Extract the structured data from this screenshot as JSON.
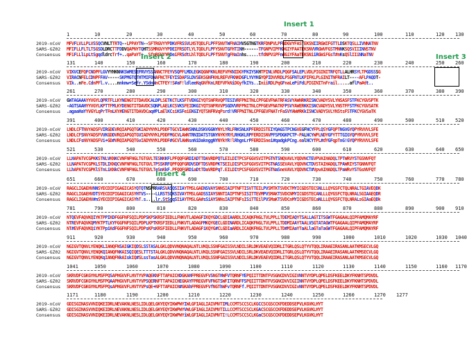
{
  "labels": {
    "seq1": "2019-nCoV",
    "seq2": "SARS-GZ02",
    "consensus": "Consensus"
  },
  "colors": {
    "identical": "#e1140a",
    "similar": "#1f2ed8",
    "other": "#111111",
    "insert": "#1f9a4c"
  },
  "inserts": [
    {
      "name": "Insert 1"
    },
    {
      "name": "Insert 2"
    },
    {
      "name": "Insert 3"
    },
    {
      "name": "Insert 4"
    }
  ],
  "blocks": [
    {
      "ticks": [
        "1",
        "10",
        "20",
        "30",
        "40",
        "50",
        "60",
        "70",
        "80",
        "90",
        "100",
        "110",
        "120",
        "130"
      ],
      "seq1": "MFVFLVLLPLVSSQCVNLTTRTQ--LPPAYTN--SFTRGVYYPDKVFRSSVLHSTQDLFLPFFSNVTWFHAIHVSGTNGTKRFDNPVLPFNDGVYFASTEKSNIIRGWIFGTTLDSKTQSLLIVNNATNV",
      "seq2": "MFIFLLFLTLTSGSDLDRCTTFDDVQAPNYTQHTSSMRGVYYPDEIFRSDTLYLTQDLFLPFYSNVTGFHTINH------TFGNPVIPFKDGIYFAATEKSNVVRGWVFGSTMNNKSQSVIIINNSTNV",
      "cons": "MFiFLLlLpLtSgqdldrcTrf+..qaPaYT+..SfnRGVYYPDeiFRSdtLhlTQDLFLPFfSNVTgFHaInhs.....tfdNPViPFndGiYFAaTEKSNiiRGWiFGsT#nKsQSlIIiNNaTNV",
      "pattern": "rrrbrrbrrbrbrbbkkkkrrbbkkrrrrrrbkkrrrrrrrrrbbrrrbrbrrrrrrrrrbrrrrrrbrrbrbkkkkkkbrbrrrrrrrbrrrrrrrrrrrrrbbrrrrrrbrrbkrrbrrrbbrrbrrrr"
    },
    {
      "ticks": [
        "131",
        "140",
        "150",
        "160",
        "170",
        "180",
        "190",
        "200",
        "210",
        "220",
        "230",
        "240",
        "250",
        "260"
      ],
      "seq1": "VIKVCEFQFCNDPFLGVYYHKNNKSWMESEFRVYSSANNCTFEYVSQPFLMDLEGKQGNFKNLREFVFKNIDGYFKIYSKHTPINLVRDLPQGFSALEPLVDLPIGINITRFQTLLALHRSYLTPGDSSSG",
      "seq2": "VIRACNFELCDNPFFAV-----SKPMGTQTHTMIFDNAFNCTFEYISDAFSLDVSEKSGNFKHLREFVFKNKDGFLYVYKGYQPIDVVRDLPSGFNTLKPIFKLPLGINITNFRAILT----AFLPAQDT-",
      "cons": "VIk..nFe.CdnPFl.v....nnkmw+Sefr.YSdnNnCTFEY!S#aF!ldleeKqGNfKnLREFVFkNiDGyfkIYs..IniiRDLPqGFnaLePiFdLPIGINITnFrail.....aflPa#dt..",
      "pattern": "rrbbbkrrbrbrrrbbbkkkkkbbbbbbbbbbbbbbbrrrrrrbrbbrrbbbbbrbrrrrbrrrrrrrrbrrrbbbbbbbkrrrbrrrrrbrrrbbrbbrrrrrrrrrrrbrrrbrkkkkbbrrrbbbbk"
    },
    {
      "ticks": [
        "261",
        "270",
        "280",
        "290",
        "300",
        "310",
        "320",
        "330",
        "340",
        "350",
        "360",
        "370",
        "380",
        "390"
      ],
      "seq1": "GWTAGAAAYYVGYLQPRTFLLKYNENGTITDAVDCALDPLSETKCTLKSFTVEKGIYQTSNFRVQPTESIVRFPNITNLCPFGEVFNATRFASVYAWNRKRISNCVADYSVLYNSASFSTFKCYGVSPTK",
      "seq2": "-AGTSAAHYYVGYLKPTTFMLKYDENGTITDAVDCSQNPLAELKCSVKSFEIDKGIYQTSNFRVVPSGDVVRFPNITNLCPFGEVFNATKFPSVYAWERKKISNCVADYSVLYNSTFFSTFKCYGVSATK",
      "cons": ".agaaHaYYVGYLqPrTFmLKY#ENGTITDAVDCaq#PLaElKCsiKSFeiEKGIYQTSNFRVqPsrd!VRFPNITNLCPFGEVFNATrFaSVYAW#RKkISNCVADYSVLYNStsFSTFKCYGVSaTK",
      "pattern": "kbbbbbbbrrrrrrbrbrrbrrrbrrrrrrrrrrrbbbbrrrbbrrbbbrrrbbbrrrrrrrrrrrbbbbbrrrrrrrrrrrrrrrrrrrrbrbrrrrrbrrbbrrrrrrrrrrrrrrbbbrrrrrrrrrbrr"
    },
    {
      "ticks": [
        "391",
        "400",
        "410",
        "420",
        "430",
        "440",
        "450",
        "460",
        "470",
        "480",
        "490",
        "500",
        "510",
        "520"
      ],
      "seq1": "LNDLCFTNVYADSFVIRGDEVRQIAPGQTGKIADYNYKLPDDFTGCVIAWNSNNLDSKVGGNYNYLYRLFRKSNLKPFERDISTEIYQAGSTPCNGVEGFNCYFPLQSYGFQPTNGVGYQPYRVVVLSFE",
      "seq2": "LNDLCFSNVYADSFVVKGDDVRQIAPGQTGVIADYNYKLPDDFMGCVLAWNTRNIDATSTGNYNYKYRYLRHGKLRPFERDISNVPFSPDGKPCTP-PALNCYWPLNDYGFYTTTGIGYQPYRVVVLSFE",
      "cons": "LNDLCFsNVYADSFVi+GD#VRQIAPGQTGvIADYNYKLPDDF#GCVlAWNsnNiDaknggNYNYkYR!lRhgnLrPFERDISnei#qadgkPCng.ealNCYfPL#dYGFqpTnG!GYQPYRVVVLSFE",
      "pattern": "rrrrrrbrrrrrrrrbbrrbrrrrrrrrrrbrrrrrrrrrrrrbrrrbrrrbbbbbbbbbbbbrrrrbrrbbbbbbbrrrrrrrrbbbbbbbbbbbrrbkbbbrrrbrrbbrrrbbbbrbrrrrrrrrrrrr"
    },
    {
      "ticks": [
        "521",
        "530",
        "540",
        "550",
        "560",
        "570",
        "580",
        "590",
        "600",
        "610",
        "620",
        "630",
        "640",
        "650"
      ],
      "seq1": "LLHAPATVCGPKKSTNLVKNKCVNFNFNGLTGTGVLTESNKKFLPFQQFGRDIADTTDAVRDPQTLEILDITPCSFGGVSVITPGTNTSNQVAVLYQDVNCTEVPVAIHADQLTPTWRVYSTGSNVFQT",
      "seq2": "LLNAPATVCGPKLSTDLIKNQCVNFNFNGLTGTGVLTPSSKRFQPFQQFGRDVSDFTDSVRDPKTSEILDISPCSFGGVSVITPGTNASSEVAVLYQDVNCTDVSTAIHADQLTPAWRIYSTGNNVFQT",
      "cons": "LLhAPATVCGPKlSTnLiKNkCVNFNFNGLTGTGVLTeSnKkF.PFQQFGRDiaDtTDaVRDPqT.EILDItPCSFGGVSVITPGTNaSneVAVLYQDVNCT#VpvAIHADQLTPaWRvYSTGsNVFQT",
      "pattern": "rrbrrrrrrrrrbrrbrbrrbrrrrrrrrrrrrrrrrbrbrbbrrrrrrrrbbrbrrbrrrrrbrbrrrrbrrrrrrrrrrrrrrbrbbrrrrrrrrrrrbbbrrrrrrrrrbrrbrrrrbrrrr"
    },
    {
      "ticks": [
        "651",
        "660",
        "670",
        "680",
        "690",
        "700",
        "710",
        "720",
        "730",
        "740",
        "750",
        "760",
        "770",
        "780"
      ],
      "seq1": "RAGCLIGAEHVNNSYECDIPIGAGICASYQTQTNSPRRARSVASQSIIAYTMSLGAENSVAYSNNSIAIPTNFTISVTTEILPVSMTKTSVDCTMYICGDSTECSNLLLQYGSFCTQLNRALTGIAVEQDK",
      "seq2": "RAGCLIGAEHVDTSYECDIPIGAGICASYHTVS----LLRSTSQKSIVAYTMSLGADSSIAYSNNTIAIPTNFSISITTEVMPVSMAKTSVDCNMYICGDSTECANLLLQYGSFCTQLNRALSGIAAEQDR",
      "cons": "RAGCLIGAEHV#nSYECDIPIGAGICASYhT.s....lr.StSqqSIiAYTMSLGA#sSiAYSNNsIAIPTNFsISiTTEilPVSMaKTSVDCnMYICGDSTECaNLLLQYGSFCTQLNRALsGIAaEQDk",
      "pattern": "rrrrrrrrrrrbbrrrrrrrrrrrrrrrrbrbbkkkkbbbbrbbbbrbbrrrrrrrrbbbrbrrrrrbrrrrrrrbrrbrrrbbrrrrbrrrrrrbrrrrrrrrrbrrrrrrrrrrrrrrrbrrrbrrrb"
    },
    {
      "ticks": [
        "781",
        "790",
        "800",
        "810",
        "820",
        "830",
        "840",
        "850",
        "860",
        "870",
        "880",
        "890",
        "900",
        "910"
      ],
      "seq1": "NTQEVFAQVKQIYKTPPIKDFGGFNFSQILPDPSKPSKRSFIEDLLFNKVTLADAGFIKQYGDCLGDIAARDLICAQKFNGLTVLPPLLTDEMIAQYTSALLAGTITSGWTFGAGAALQIPFAMQMAYRF",
      "seq2": "NTREVFAQVKQMYKTPTLKYFGGFNFSQILPDPLKPTKRSFIEDLLFNKVTLADAGFMKQYGECLGDINARDLICAQKFNGLTVLPPLLTDDMIAAYTAALVSGTATAGWTFGAGAALQIPFAMQMAYRF",
      "cons": "NT#EVFAQVKQiYKTPpiKdFGGFNFSQILPDPsKPsKRSFIEDLLFNKVTLADAGFiKQYG#CLGDIaARDLICAQKFNGLTVLPPLLTD#MIAaYTaALlaGTaTaGWTFGAGAALQIPFAMQMAYRF",
      "pattern": "rrbrrrrrrrrbrrrrbbrbrrrrrrrrrrrrrbrrbrrrrrrrrrrrrrrrrrrrrbrrrrbrrrrrbrrrrrrrrrrrrrrrrrrrrrrbrrrbrrbrrbbrrbrbrbrrrrrrrrrrrrrrrrrrrrrr"
    },
    {
      "ticks": [
        "911",
        "920",
        "930",
        "940",
        "950",
        "960",
        "970",
        "980",
        "990",
        "1000",
        "1010",
        "1020",
        "1030",
        "1040"
      ],
      "seq1": "NGIGVTQNVLYENQKLIANQFNSAIGKIQDSLSSTASALGKLQDVVNQNAQALNTLVKQLSSNFGAISSVLNDILSRLDKVEAEVQIDRLITGRLQSLQTYVTQQLIRAAEIRASANLAATKMSECVLGQ",
      "seq2": "NGIGVTQNVLYENQKQIANQFNKAISQIQESLTTTSTALGKLQDVVNQNAQALNTLVKQLSSNFGAISSVLNDILSRLDKVEAEVQIDRLITGRLQSLQTYVTQQLIRAAEIRASANLAATKMSECVLGQ",
      "cons": "NGIGVTQNVLYENQKqIANQFNkAIskIQ#SLssTasALGKLQDVVNQNAQALNTLVKQLSSNFGAISSVLNDILSRLDKVEAEVQIDRLITGRLQSLQTYVTQQLIRAAEIRASANLAATKMSECVLGQ",
      "pattern": "rrrrrrrrrrrrrrrbrrrrrrbrrbbrrbrrbbrbbrrrrrrrrrrrrrrrrrrrrrrrrrrrrrrrrrrrrrrrrrrrrrrrrrrrrrrrrrrrrrrrrrrrrrrrrrrrrrrrrrrrrrrrrrrrrrrrrrr"
    },
    {
      "ticks": [
        "1041",
        "1050",
        "1060",
        "1070",
        "1080",
        "1090",
        "1100",
        "1110",
        "1120",
        "1130",
        "1140",
        "1150",
        "1160",
        "1170"
      ],
      "seq1": "SKRVDFCGKGYHLMSFPQSAPHGVVFLHVTYVPAQEKNFTTAPAICHDGKAHFPREGVFVSNGTHWFVTQRNFYEPQIITTDNTFVSGNCDVVIGIVNNTVYDPLQPELDSFKEELDKYFKNHTSPDVDL",
      "seq2": "SKRVDFCGKGYHLMSFPQAAPHGVVFLHVTYVPSQERNFTTAPAICHEGKAYFPREGVFVFNGTSWFITQRNFFSPQIITTDNTFVSGNCDVVIGIINNTVYDPLQPELDSFKEELDKYFKNHTSPDVDL",
      "cons": "SKRVDFCGKGYHLMSFPQsAPHGVVFLHVTYVPsQE+NFTTAPAICH#GKAhFPREGVFVfNGThWFvTQRNFf.PQIITTDNTFVSGNCDVVIGIvNNTVYDPLQPELDSFKEELDKYFKNHTSPDVDL",
      "pattern": "rrrrrrrrrrrrrrrrrrbrrrrrrrrrrrrrrbrrbrrrrrrrrrrbrrrbrrrrrrrrbrrrbrrbrrrrrbbrrrrrrrrrrrrrrrrrrrrrrbrrrrrrrrrrrrrrrrrrrrrrrrrrrrrrrrrrrr"
    },
    {
      "ticks": [
        "1171",
        "1180",
        "1190",
        "1200",
        "1210",
        "1220",
        "1230",
        "1240",
        "1250",
        "1260",
        "1270",
        "1277"
      ],
      "seq1": "GDISGINASVVNIQKEIDRLNEVAKNLNESLIDLQELGKYEQYIKWPWYIWLGFIAGLIAIVMVTIMLCCMTSCCSCLKGCCSCGSCCKFDEDDSEPVLKGVKLHYT",
      "seq2": "GDISGINASVVNIQKEIDRLNEVAKNLNESLIDLQELGKYEQYIKWPWYVWLGFIAGLIAIVMVTILLCCMTSCCSCLKGACSCGSCCKFDEDDSEPVLKGVKLHYT",
      "cons": "GDISGINASVVNIQKEIDRLNEVAKNLNESLIDLQELGKYEQYIKWPWYiWLGFIAGLIAIVMVTI!LCCMTSCCSCLKGaCSCGSCCKFDEDDSEPVLKGVKLHYT",
      "pattern": "rrrrrrrrrrrrrrrrrrrrrrrrrrrrrrrrrrrrrrrrrrrrrrrrrbrrrrrrrrrrrrrrrrbrrrrrrrrrrrrrbrrrrrrrrrrrrrrrrrrrrrrrrrrr"
    }
  ]
}
